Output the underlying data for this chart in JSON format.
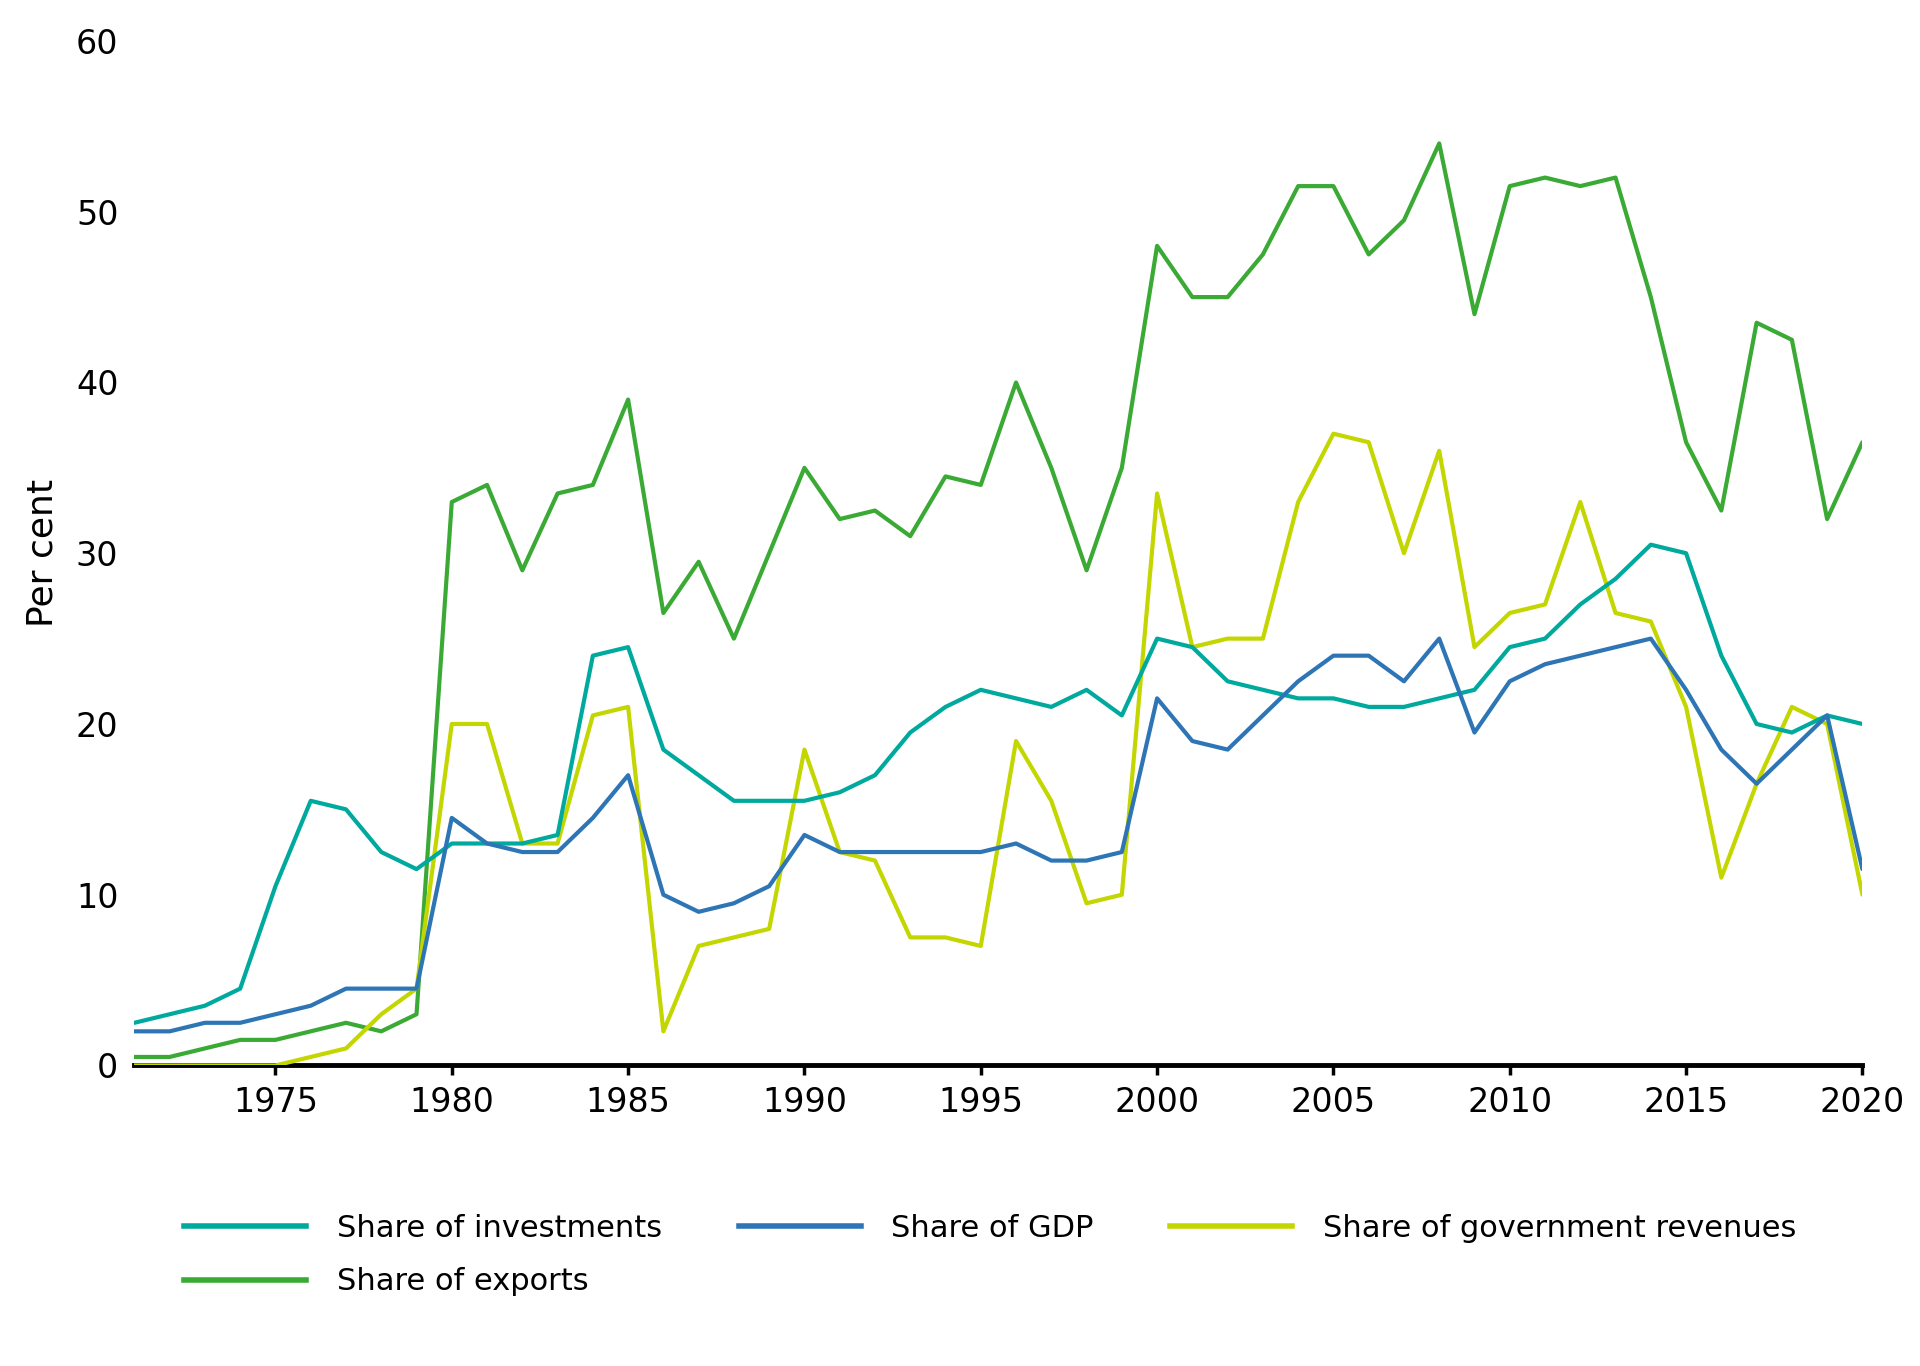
{
  "ylabel": "Per cent",
  "xlim": [
    1971,
    2020
  ],
  "ylim": [
    0,
    60
  ],
  "yticks": [
    0,
    10,
    20,
    30,
    40,
    50,
    60
  ],
  "xticks": [
    1975,
    1980,
    1985,
    1990,
    1995,
    2000,
    2005,
    2010,
    2015,
    2020
  ],
  "background_color": "#ffffff",
  "line_width": 3.0,
  "colors": {
    "investments": "#00A99D",
    "exports": "#3AAA35",
    "gdp": "#2E75B6",
    "gov_revenues": "#C4D600"
  },
  "labels": {
    "investments": "Share of investments",
    "exports": "Share of exports",
    "gdp": "Share of GDP",
    "gov_revenues": "Share of government revenues"
  },
  "years": [
    1971,
    1972,
    1973,
    1974,
    1975,
    1976,
    1977,
    1978,
    1979,
    1980,
    1981,
    1982,
    1983,
    1984,
    1985,
    1986,
    1987,
    1988,
    1989,
    1990,
    1991,
    1992,
    1993,
    1994,
    1995,
    1996,
    1997,
    1998,
    1999,
    2000,
    2001,
    2002,
    2003,
    2004,
    2005,
    2006,
    2007,
    2008,
    2009,
    2010,
    2011,
    2012,
    2013,
    2014,
    2015,
    2016,
    2017,
    2018,
    2019,
    2020
  ],
  "investments": [
    2.5,
    3.0,
    3.5,
    4.5,
    10.5,
    15.5,
    15.0,
    12.5,
    11.5,
    13.0,
    13.0,
    13.0,
    13.5,
    24.0,
    24.5,
    18.5,
    17.0,
    15.5,
    15.5,
    15.5,
    16.0,
    17.0,
    19.5,
    21.0,
    22.0,
    21.5,
    21.0,
    22.0,
    20.5,
    25.0,
    24.5,
    22.5,
    22.0,
    21.5,
    21.5,
    21.0,
    21.0,
    21.5,
    22.0,
    24.5,
    25.0,
    27.0,
    28.5,
    30.5,
    30.0,
    24.0,
    20.0,
    19.5,
    20.5,
    20.0
  ],
  "exports": [
    0.5,
    0.5,
    1.0,
    1.5,
    1.5,
    2.0,
    2.5,
    2.0,
    3.0,
    33.0,
    34.0,
    29.0,
    33.5,
    34.0,
    39.0,
    26.5,
    29.5,
    25.0,
    30.0,
    35.0,
    32.0,
    32.5,
    31.0,
    34.5,
    34.0,
    40.0,
    35.0,
    29.0,
    35.0,
    48.0,
    45.0,
    45.0,
    47.5,
    51.5,
    51.5,
    47.5,
    49.5,
    54.0,
    44.0,
    51.5,
    52.0,
    51.5,
    52.0,
    45.0,
    36.5,
    32.5,
    43.5,
    42.5,
    32.0,
    36.5
  ],
  "gdp": [
    2.0,
    2.0,
    2.5,
    2.5,
    3.0,
    3.5,
    4.5,
    4.5,
    4.5,
    14.5,
    13.0,
    12.5,
    12.5,
    14.5,
    17.0,
    10.0,
    9.0,
    9.5,
    10.5,
    13.5,
    12.5,
    12.5,
    12.5,
    12.5,
    12.5,
    13.0,
    12.0,
    12.0,
    12.5,
    21.5,
    19.0,
    18.5,
    20.5,
    22.5,
    24.0,
    24.0,
    22.5,
    25.0,
    19.5,
    22.5,
    23.5,
    24.0,
    24.5,
    25.0,
    22.0,
    18.5,
    16.5,
    18.5,
    20.5,
    11.5
  ],
  "gov_revenues": [
    0.0,
    0.0,
    0.0,
    0.0,
    0.0,
    0.5,
    1.0,
    3.0,
    4.5,
    20.0,
    20.0,
    13.0,
    13.0,
    20.5,
    21.0,
    2.0,
    7.0,
    7.5,
    8.0,
    18.5,
    12.5,
    12.0,
    7.5,
    7.5,
    7.0,
    19.0,
    15.5,
    9.5,
    10.0,
    33.5,
    24.5,
    25.0,
    25.0,
    33.0,
    37.0,
    36.5,
    30.0,
    36.0,
    24.5,
    26.5,
    27.0,
    33.0,
    26.5,
    26.0,
    21.0,
    11.0,
    16.5,
    21.0,
    20.0,
    10.0
  ]
}
